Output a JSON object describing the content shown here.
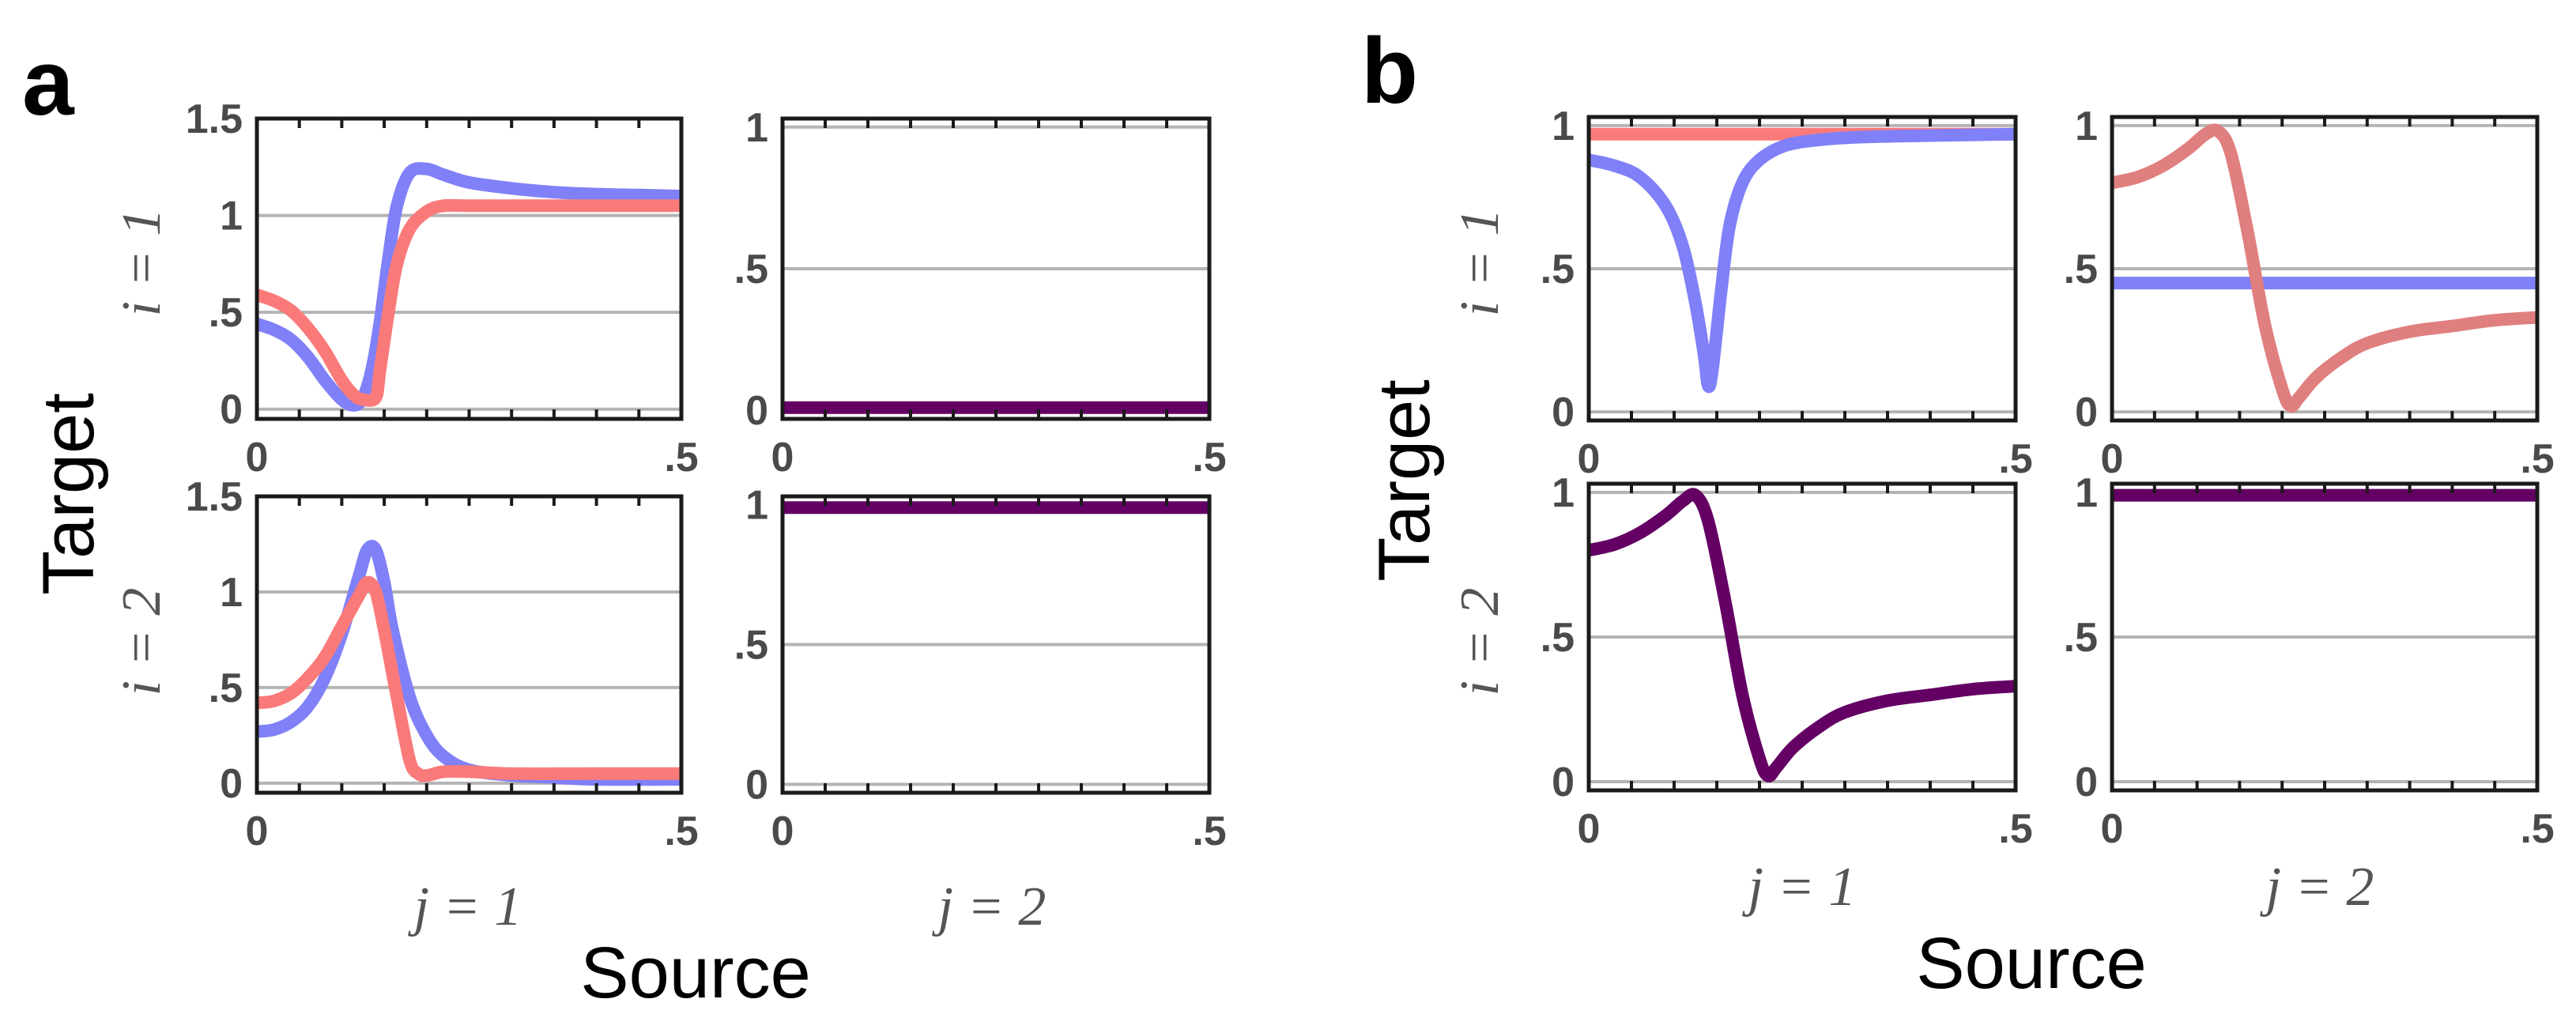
{
  "colors": {
    "blue": "#8080f8",
    "red": "#fa7a7a",
    "red_dark": "#e07f7f",
    "purple": "#640064",
    "grid": "#b4b4b4",
    "axis": "#1a1a1a",
    "tick_text": "#4a4a4a"
  },
  "labels": {
    "panel_a": "a",
    "panel_b": "b",
    "target": "Target",
    "source": "Source",
    "i1": "i = 1",
    "i2": "i = 2",
    "j1": "j = 1",
    "j2": "j = 2"
  },
  "chart_data": [
    {
      "type": "line",
      "panel": "a",
      "row": "i = 1",
      "col": "j = 1",
      "xlim": [
        0,
        0.5
      ],
      "ylim": [
        -0.05,
        1.5
      ],
      "x_ticks": [
        0,
        0.5
      ],
      "x_tick_labels": [
        "0",
        ".5"
      ],
      "y_ticks": [
        0,
        0.5,
        1,
        1.5
      ],
      "y_tick_labels": [
        "0",
        ".5",
        "1",
        "1.5"
      ],
      "grid": [
        0,
        0.5,
        1,
        1.5
      ],
      "series": [
        {
          "name": "blue",
          "x": [
            0,
            0.02,
            0.04,
            0.06,
            0.08,
            0.1,
            0.115,
            0.125,
            0.135,
            0.145,
            0.155,
            0.165,
            0.18,
            0.2,
            0.22,
            0.25,
            0.3,
            0.35,
            0.4,
            0.45,
            0.5
          ],
          "y": [
            0.44,
            0.41,
            0.36,
            0.27,
            0.15,
            0.05,
            0.02,
            0.06,
            0.2,
            0.45,
            0.78,
            1.05,
            1.22,
            1.24,
            1.21,
            1.17,
            1.14,
            1.12,
            1.11,
            1.105,
            1.1
          ]
        },
        {
          "name": "red",
          "x": [
            0,
            0.02,
            0.04,
            0.06,
            0.08,
            0.1,
            0.115,
            0.125,
            0.14,
            0.145,
            0.155,
            0.165,
            0.18,
            0.2,
            0.22,
            0.25,
            0.3,
            0.4,
            0.5
          ],
          "y": [
            0.59,
            0.56,
            0.51,
            0.42,
            0.3,
            0.15,
            0.07,
            0.05,
            0.06,
            0.2,
            0.5,
            0.75,
            0.93,
            1.02,
            1.05,
            1.05,
            1.05,
            1.05,
            1.05
          ]
        }
      ]
    },
    {
      "type": "line",
      "panel": "a",
      "row": "i = 1",
      "col": "j = 2",
      "xlim": [
        0,
        0.5
      ],
      "ylim": [
        -0.03,
        1.03
      ],
      "x_ticks": [
        0,
        0.5
      ],
      "x_tick_labels": [
        "0",
        ".5"
      ],
      "y_ticks": [
        0,
        0.5,
        1
      ],
      "y_tick_labels": [
        "0",
        ".5",
        "1"
      ],
      "grid": [
        0,
        0.5,
        1
      ],
      "series": [
        {
          "name": "purple",
          "x": [
            0,
            0.5
          ],
          "y": [
            0.01,
            0.01
          ]
        }
      ]
    },
    {
      "type": "line",
      "panel": "a",
      "row": "i = 2",
      "col": "j = 1",
      "xlim": [
        0,
        0.5
      ],
      "ylim": [
        -0.05,
        1.5
      ],
      "x_ticks": [
        0,
        0.5
      ],
      "x_tick_labels": [
        "0",
        ".5"
      ],
      "y_ticks": [
        0,
        0.5,
        1,
        1.5
      ],
      "y_tick_labels": [
        "0",
        ".5",
        "1",
        "1.5"
      ],
      "grid": [
        0,
        0.5,
        1,
        1.5
      ],
      "series": [
        {
          "name": "blue",
          "x": [
            0,
            0.02,
            0.04,
            0.06,
            0.08,
            0.1,
            0.12,
            0.13,
            0.14,
            0.15,
            0.16,
            0.18,
            0.2,
            0.22,
            0.25,
            0.3,
            0.35,
            0.4,
            0.5
          ],
          "y": [
            0.27,
            0.28,
            0.32,
            0.4,
            0.55,
            0.78,
            1.08,
            1.22,
            1.22,
            1.05,
            0.8,
            0.45,
            0.25,
            0.14,
            0.07,
            0.04,
            0.03,
            0.02,
            0.02
          ]
        },
        {
          "name": "red",
          "x": [
            0,
            0.02,
            0.04,
            0.06,
            0.08,
            0.1,
            0.12,
            0.13,
            0.14,
            0.15,
            0.165,
            0.18,
            0.19,
            0.2,
            0.22,
            0.25,
            0.3,
            0.4,
            0.5
          ],
          "y": [
            0.42,
            0.43,
            0.47,
            0.55,
            0.66,
            0.82,
            0.98,
            1.05,
            1.0,
            0.8,
            0.45,
            0.12,
            0.05,
            0.04,
            0.06,
            0.06,
            0.05,
            0.05,
            0.05
          ]
        }
      ]
    },
    {
      "type": "line",
      "panel": "a",
      "row": "i = 2",
      "col": "j = 2",
      "xlim": [
        0,
        0.5
      ],
      "ylim": [
        -0.03,
        1.03
      ],
      "x_ticks": [
        0,
        0.5
      ],
      "x_tick_labels": [
        "0",
        ".5"
      ],
      "y_ticks": [
        0,
        0.5,
        1
      ],
      "y_tick_labels": [
        "0",
        ".5",
        "1"
      ],
      "grid": [
        0,
        0.5,
        1
      ],
      "series": [
        {
          "name": "purple",
          "x": [
            0,
            0.5
          ],
          "y": [
            0.99,
            0.99
          ]
        }
      ]
    },
    {
      "type": "line",
      "panel": "b",
      "row": "i = 1",
      "col": "j = 1",
      "xlim": [
        0,
        0.5
      ],
      "ylim": [
        -0.03,
        1.03
      ],
      "x_ticks": [
        0,
        0.5
      ],
      "x_tick_labels": [
        "0",
        ".5"
      ],
      "y_ticks": [
        0,
        0.5,
        1
      ],
      "y_tick_labels": [
        "0",
        ".5",
        "1"
      ],
      "grid": [
        0,
        0.5,
        1
      ],
      "series": [
        {
          "name": "red",
          "x": [
            0,
            0.5
          ],
          "y": [
            0.97,
            0.97
          ]
        },
        {
          "name": "blue",
          "x": [
            0,
            0.03,
            0.06,
            0.09,
            0.11,
            0.125,
            0.135,
            0.14,
            0.145,
            0.155,
            0.165,
            0.18,
            0.2,
            0.23,
            0.27,
            0.32,
            0.4,
            0.5
          ],
          "y": [
            0.88,
            0.86,
            0.82,
            0.72,
            0.58,
            0.38,
            0.2,
            0.09,
            0.15,
            0.42,
            0.65,
            0.8,
            0.88,
            0.93,
            0.95,
            0.96,
            0.965,
            0.97
          ]
        }
      ]
    },
    {
      "type": "line",
      "panel": "b",
      "row": "i = 1",
      "col": "j = 2",
      "xlim": [
        0,
        0.5
      ],
      "ylim": [
        -0.03,
        1.03
      ],
      "x_ticks": [
        0,
        0.5
      ],
      "x_tick_labels": [
        "0",
        ".5"
      ],
      "y_ticks": [
        0,
        0.5,
        1
      ],
      "y_tick_labels": [
        "0",
        ".5",
        "1"
      ],
      "grid": [
        0,
        0.5,
        1
      ],
      "series": [
        {
          "name": "blue",
          "x": [
            0,
            0.5
          ],
          "y": [
            0.45,
            0.45
          ]
        },
        {
          "name": "red_dark",
          "x": [
            0,
            0.03,
            0.06,
            0.09,
            0.11,
            0.125,
            0.14,
            0.16,
            0.18,
            0.2,
            0.21,
            0.22,
            0.24,
            0.27,
            0.3,
            0.35,
            0.4,
            0.45,
            0.5
          ],
          "y": [
            0.8,
            0.82,
            0.86,
            0.92,
            0.97,
            0.98,
            0.9,
            0.62,
            0.3,
            0.08,
            0.02,
            0.05,
            0.12,
            0.19,
            0.24,
            0.28,
            0.3,
            0.32,
            0.33
          ]
        }
      ]
    },
    {
      "type": "line",
      "panel": "b",
      "row": "i = 2",
      "col": "j = 1",
      "xlim": [
        0,
        0.5
      ],
      "ylim": [
        -0.03,
        1.03
      ],
      "x_ticks": [
        0,
        0.5
      ],
      "x_tick_labels": [
        "0",
        ".5"
      ],
      "y_ticks": [
        0,
        0.5,
        1
      ],
      "y_tick_labels": [
        "0",
        ".5",
        "1"
      ],
      "grid": [
        0,
        0.5,
        1
      ],
      "series": [
        {
          "name": "purple",
          "x": [
            0,
            0.03,
            0.06,
            0.09,
            0.11,
            0.125,
            0.14,
            0.16,
            0.18,
            0.2,
            0.21,
            0.22,
            0.24,
            0.27,
            0.3,
            0.35,
            0.4,
            0.45,
            0.5
          ],
          "y": [
            0.8,
            0.82,
            0.86,
            0.92,
            0.97,
            0.99,
            0.9,
            0.62,
            0.3,
            0.08,
            0.02,
            0.05,
            0.12,
            0.19,
            0.24,
            0.28,
            0.3,
            0.32,
            0.33
          ]
        }
      ]
    },
    {
      "type": "line",
      "panel": "b",
      "row": "i = 2",
      "col": "j = 2",
      "xlim": [
        0,
        0.5
      ],
      "ylim": [
        -0.03,
        1.03
      ],
      "x_ticks": [
        0,
        0.5
      ],
      "x_tick_labels": [
        "0",
        ".5"
      ],
      "y_ticks": [
        0,
        0.5,
        1
      ],
      "y_tick_labels": [
        "0",
        ".5",
        "1"
      ],
      "grid": [
        0,
        0.5,
        1
      ],
      "series": [
        {
          "name": "purple",
          "x": [
            0,
            0.5
          ],
          "y": [
            0.99,
            0.99
          ]
        }
      ]
    }
  ]
}
